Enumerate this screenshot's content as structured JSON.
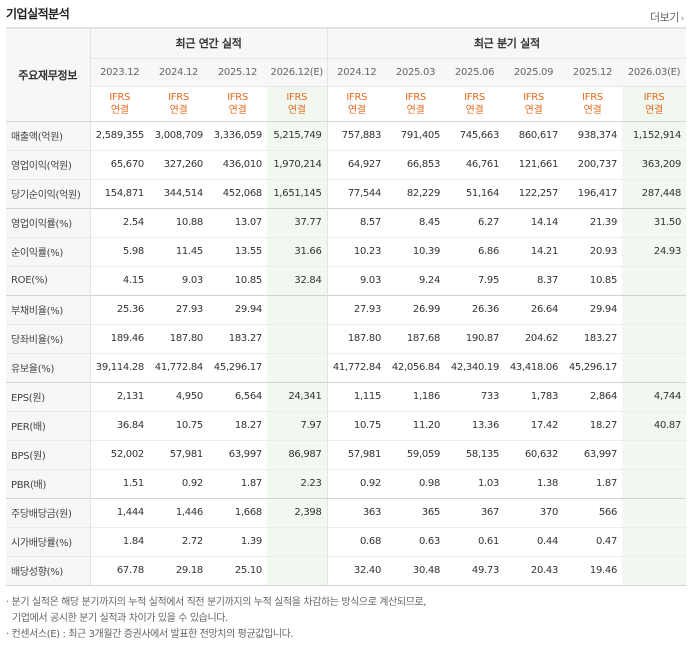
{
  "section_title": "기업실적분석",
  "more_label": "더보기",
  "more_arrow": "›",
  "label_header": "주요재무정보",
  "annual_header": "최근 연간 실적",
  "quarterly_header": "최근 분기 실적",
  "periods": [
    "2023.12",
    "2024.12",
    "2025.12",
    "2026.12(E)",
    "2024.12",
    "2025.03",
    "2025.06",
    "2025.09",
    "2025.12",
    "2026.03(E)"
  ],
  "ifrs_top": "IFRS",
  "ifrs_bottom": "연결",
  "rows": [
    {
      "label": "매출액(억원)",
      "values": [
        "2,589,355",
        "3,008,709",
        "3,336,059",
        "5,215,749",
        "757,883",
        "791,405",
        "745,663",
        "860,617",
        "938,374",
        "1,152,914"
      ]
    },
    {
      "label": "영업이익(억원)",
      "values": [
        "65,670",
        "327,260",
        "436,010",
        "1,970,214",
        "64,927",
        "66,853",
        "46,761",
        "121,661",
        "200,737",
        "363,209"
      ]
    },
    {
      "label": "당기순이익(억원)",
      "values": [
        "154,871",
        "344,514",
        "452,068",
        "1,651,145",
        "77,544",
        "82,229",
        "51,164",
        "122,257",
        "196,417",
        "287,448"
      ]
    },
    {
      "label": "영업이익률(%)",
      "values": [
        "2.54",
        "10.88",
        "13.07",
        "37.77",
        "8.57",
        "8.45",
        "6.27",
        "14.14",
        "21.39",
        "31.50"
      ]
    },
    {
      "label": "순이익률(%)",
      "values": [
        "5.98",
        "11.45",
        "13.55",
        "31.66",
        "10.23",
        "10.39",
        "6.86",
        "14.21",
        "20.93",
        "24.93"
      ]
    },
    {
      "label": "ROE(%)",
      "values": [
        "4.15",
        "9.03",
        "10.85",
        "32.84",
        "9.03",
        "9.24",
        "7.95",
        "8.37",
        "10.85",
        ""
      ]
    },
    {
      "label": "부채비율(%)",
      "values": [
        "25.36",
        "27.93",
        "29.94",
        "",
        "27.93",
        "26.99",
        "26.36",
        "26.64",
        "29.94",
        ""
      ]
    },
    {
      "label": "당좌비율(%)",
      "values": [
        "189.46",
        "187.80",
        "183.27",
        "",
        "187.80",
        "187.68",
        "190.87",
        "204.62",
        "183.27",
        ""
      ]
    },
    {
      "label": "유보율(%)",
      "values": [
        "39,114.28",
        "41,772.84",
        "45,296.17",
        "",
        "41,772.84",
        "42,056.84",
        "42,340.19",
        "43,418.06",
        "45,296.17",
        ""
      ]
    },
    {
      "label": "EPS(원)",
      "values": [
        "2,131",
        "4,950",
        "6,564",
        "24,341",
        "1,115",
        "1,186",
        "733",
        "1,783",
        "2,864",
        "4,744"
      ]
    },
    {
      "label": "PER(배)",
      "values": [
        "36.84",
        "10.75",
        "18.27",
        "7.97",
        "10.75",
        "11.20",
        "13.36",
        "17.42",
        "18.27",
        "40.87"
      ]
    },
    {
      "label": "BPS(원)",
      "values": [
        "52,002",
        "57,981",
        "63,997",
        "86,987",
        "57,981",
        "59,059",
        "58,135",
        "60,632",
        "63,997",
        ""
      ]
    },
    {
      "label": "PBR(배)",
      "values": [
        "1.51",
        "0.92",
        "1.87",
        "2.23",
        "0.92",
        "0.98",
        "1.03",
        "1.38",
        "1.87",
        ""
      ]
    },
    {
      "label": "주당배당금(원)",
      "values": [
        "1,444",
        "1,446",
        "1,668",
        "2,398",
        "363",
        "365",
        "367",
        "370",
        "566",
        ""
      ]
    },
    {
      "label": "시가배당률(%)",
      "values": [
        "1.84",
        "2.72",
        "1.39",
        "",
        "0.68",
        "0.63",
        "0.61",
        "0.44",
        "0.47",
        ""
      ]
    },
    {
      "label": "배당성향(%)",
      "values": [
        "67.78",
        "29.18",
        "25.10",
        "",
        "32.40",
        "30.48",
        "49.73",
        "20.43",
        "19.46",
        ""
      ]
    }
  ],
  "notes": {
    "line1": "· 분기 실적은 해당 분기까지의 누적 실적에서 직전 분기까지의 누적 실적을 차감하는 방식으로 계산되므로,",
    "line2": "기업에서 공시한 분기 실적과 차이가 있을 수 있습니다.",
    "line3": "· 컨센서스(E) : 최근 3개월간 증권사에서 발표한 전망치의 평균값입니다."
  }
}
